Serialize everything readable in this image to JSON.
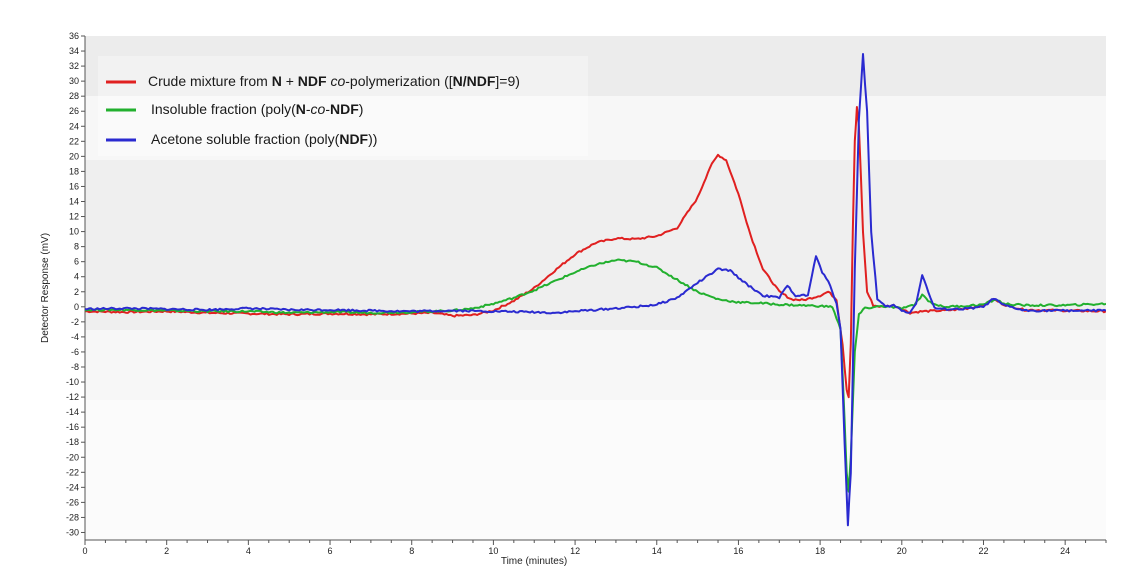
{
  "chart_data": {
    "type": "line",
    "xlabel": "Time (minutes)",
    "ylabel": "Detector Response (mV)",
    "xlim": [
      0,
      25
    ],
    "ylim": [
      -31,
      36
    ],
    "x_ticks": [
      0,
      2,
      4,
      6,
      8,
      10,
      12,
      14,
      16,
      18,
      20,
      22,
      24
    ],
    "y_ticks": [
      -30,
      -28,
      -26,
      -24,
      -22,
      -20,
      -18,
      -16,
      -14,
      -12,
      -10,
      -8,
      -6,
      -4,
      -2,
      0,
      2,
      4,
      6,
      8,
      10,
      12,
      14,
      16,
      18,
      20,
      22,
      24,
      26,
      28,
      30,
      32,
      34,
      36
    ],
    "grid": false,
    "legend_position": "top-left",
    "series": [
      {
        "name": "Crude mixture from N + NDF co-polymerization ([N/NDF]=9)",
        "legend_parts": [
          {
            "t": "Crude mixture from "
          },
          {
            "t": "N",
            "b": true
          },
          {
            "t": " + "
          },
          {
            "t": "NDF",
            "b": true
          },
          {
            "t": " "
          },
          {
            "t": "co",
            "i": true
          },
          {
            "t": "-polymerization (["
          },
          {
            "t": "N/NDF",
            "b": true
          },
          {
            "t": "]=9)"
          }
        ],
        "color": "#e02020",
        "points": [
          [
            0,
            -0.6
          ],
          [
            1,
            -0.7
          ],
          [
            2,
            -0.6
          ],
          [
            3,
            -0.8
          ],
          [
            4,
            -0.9
          ],
          [
            5,
            -1.0
          ],
          [
            6,
            -0.9
          ],
          [
            7,
            -1.0
          ],
          [
            8,
            -0.9
          ],
          [
            8.5,
            -0.8
          ],
          [
            9,
            -1.2
          ],
          [
            9.5,
            -1.1
          ],
          [
            10,
            -0.5
          ],
          [
            10.5,
            0.8
          ],
          [
            11,
            2.5
          ],
          [
            11.5,
            4.8
          ],
          [
            12,
            7.0
          ],
          [
            12.5,
            8.5
          ],
          [
            13,
            9.1
          ],
          [
            13.5,
            9.0
          ],
          [
            14,
            9.4
          ],
          [
            14.5,
            10.5
          ],
          [
            15,
            14.5
          ],
          [
            15.3,
            18.5
          ],
          [
            15.5,
            20.2
          ],
          [
            15.7,
            19.5
          ],
          [
            16,
            15.0
          ],
          [
            16.3,
            9.5
          ],
          [
            16.6,
            5.0
          ],
          [
            17,
            2.0
          ],
          [
            17.3,
            1.0
          ],
          [
            17.6,
            0.9
          ],
          [
            18,
            1.5
          ],
          [
            18.2,
            2.0
          ],
          [
            18.4,
            1.0
          ],
          [
            18.55,
            -5.0
          ],
          [
            18.65,
            -11.0
          ],
          [
            18.7,
            -12.0
          ],
          [
            18.75,
            -5.0
          ],
          [
            18.8,
            10.0
          ],
          [
            18.85,
            22.0
          ],
          [
            18.9,
            26.5
          ],
          [
            18.95,
            24.0
          ],
          [
            19.05,
            10.0
          ],
          [
            19.15,
            2.0
          ],
          [
            19.3,
            0.2
          ],
          [
            19.5,
            0.0
          ],
          [
            19.8,
            0.2
          ],
          [
            20,
            -0.3
          ],
          [
            20.2,
            -0.8
          ],
          [
            20.5,
            -0.6
          ],
          [
            21,
            -0.5
          ],
          [
            21.5,
            -0.3
          ],
          [
            22,
            0.2
          ],
          [
            22.25,
            1.0
          ],
          [
            22.5,
            0.3
          ],
          [
            23,
            -0.4
          ],
          [
            24,
            -0.5
          ],
          [
            25,
            -0.6
          ]
        ]
      },
      {
        "name": "Insoluble fraction (poly(N-co-NDF)",
        "legend_parts": [
          {
            "t": "Insoluble fraction (poly("
          },
          {
            "t": "N",
            "b": true
          },
          {
            "t": "-"
          },
          {
            "t": "co",
            "i": true
          },
          {
            "t": "-"
          },
          {
            "t": "NDF",
            "b": true
          },
          {
            "t": ")"
          }
        ],
        "color": "#22b02e",
        "points": [
          [
            0,
            -0.4
          ],
          [
            1,
            -0.4
          ],
          [
            2,
            -0.5
          ],
          [
            3,
            -0.6
          ],
          [
            4,
            -0.6
          ],
          [
            5,
            -0.8
          ],
          [
            6,
            -0.7
          ],
          [
            7,
            -0.8
          ],
          [
            8,
            -0.7
          ],
          [
            9,
            -0.5
          ],
          [
            9.5,
            -0.2
          ],
          [
            10,
            0.4
          ],
          [
            10.5,
            1.2
          ],
          [
            11,
            2.2
          ],
          [
            11.5,
            3.4
          ],
          [
            12,
            4.6
          ],
          [
            12.5,
            5.6
          ],
          [
            13,
            6.2
          ],
          [
            13.5,
            6.0
          ],
          [
            14,
            5.2
          ],
          [
            14.5,
            3.6
          ],
          [
            15,
            2.0
          ],
          [
            15.5,
            1.0
          ],
          [
            16,
            0.6
          ],
          [
            16.5,
            0.5
          ],
          [
            17,
            0.3
          ],
          [
            17.5,
            0.2
          ],
          [
            18,
            0.1
          ],
          [
            18.3,
            0.0
          ],
          [
            18.5,
            -3.0
          ],
          [
            18.6,
            -15.0
          ],
          [
            18.65,
            -22.0
          ],
          [
            18.7,
            -24.5
          ],
          [
            18.75,
            -20.0
          ],
          [
            18.85,
            -6.0
          ],
          [
            18.95,
            -1.0
          ],
          [
            19.1,
            -0.2
          ],
          [
            19.5,
            0.1
          ],
          [
            20,
            -0.2
          ],
          [
            20.3,
            0.2
          ],
          [
            20.5,
            1.6
          ],
          [
            20.7,
            0.6
          ],
          [
            21,
            0.0
          ],
          [
            21.5,
            0.1
          ],
          [
            22,
            0.3
          ],
          [
            22.3,
            1.0
          ],
          [
            22.5,
            0.4
          ],
          [
            23,
            0.2
          ],
          [
            24,
            0.2
          ],
          [
            25,
            0.4
          ]
        ]
      },
      {
        "name": "Acetone soluble fraction (poly(NDF))",
        "legend_parts": [
          {
            "t": "Acetone soluble fraction (poly("
          },
          {
            "t": "NDF",
            "b": true
          },
          {
            "t": "))"
          }
        ],
        "color": "#2a2ad0",
        "points": [
          [
            0,
            -0.3
          ],
          [
            1,
            -0.2
          ],
          [
            2,
            -0.3
          ],
          [
            3,
            -0.4
          ],
          [
            4,
            -0.2
          ],
          [
            5,
            -0.4
          ],
          [
            6,
            -0.4
          ],
          [
            7,
            -0.5
          ],
          [
            8,
            -0.6
          ],
          [
            9,
            -0.5
          ],
          [
            10,
            -0.6
          ],
          [
            11,
            -0.7
          ],
          [
            11.5,
            -0.8
          ],
          [
            12,
            -0.6
          ],
          [
            12.5,
            -0.4
          ],
          [
            13,
            -0.2
          ],
          [
            13.5,
            0.0
          ],
          [
            14,
            0.3
          ],
          [
            14.5,
            1.2
          ],
          [
            15,
            3.2
          ],
          [
            15.5,
            5.0
          ],
          [
            15.8,
            4.8
          ],
          [
            16.2,
            3.0
          ],
          [
            16.6,
            1.5
          ],
          [
            17,
            1.2
          ],
          [
            17.2,
            2.8
          ],
          [
            17.4,
            1.5
          ],
          [
            17.7,
            1.5
          ],
          [
            17.9,
            6.8
          ],
          [
            18.05,
            4.5
          ],
          [
            18.2,
            3.5
          ],
          [
            18.4,
            0.5
          ],
          [
            18.5,
            -3.0
          ],
          [
            18.6,
            -18.0
          ],
          [
            18.68,
            -29.0
          ],
          [
            18.75,
            -22.0
          ],
          [
            18.85,
            5.0
          ],
          [
            18.95,
            25.0
          ],
          [
            19.05,
            33.5
          ],
          [
            19.15,
            26.0
          ],
          [
            19.25,
            10.0
          ],
          [
            19.4,
            1.0
          ],
          [
            19.6,
            0.0
          ],
          [
            19.8,
            0.2
          ],
          [
            20,
            -0.5
          ],
          [
            20.2,
            -0.8
          ],
          [
            20.35,
            0.5
          ],
          [
            20.5,
            4.2
          ],
          [
            20.65,
            2.0
          ],
          [
            20.8,
            -0.2
          ],
          [
            21,
            -0.3
          ],
          [
            21.5,
            -0.3
          ],
          [
            22,
            0.0
          ],
          [
            22.25,
            1.1
          ],
          [
            22.5,
            0.2
          ],
          [
            23,
            -0.5
          ],
          [
            24,
            -0.5
          ],
          [
            25,
            -0.5
          ]
        ]
      }
    ]
  }
}
